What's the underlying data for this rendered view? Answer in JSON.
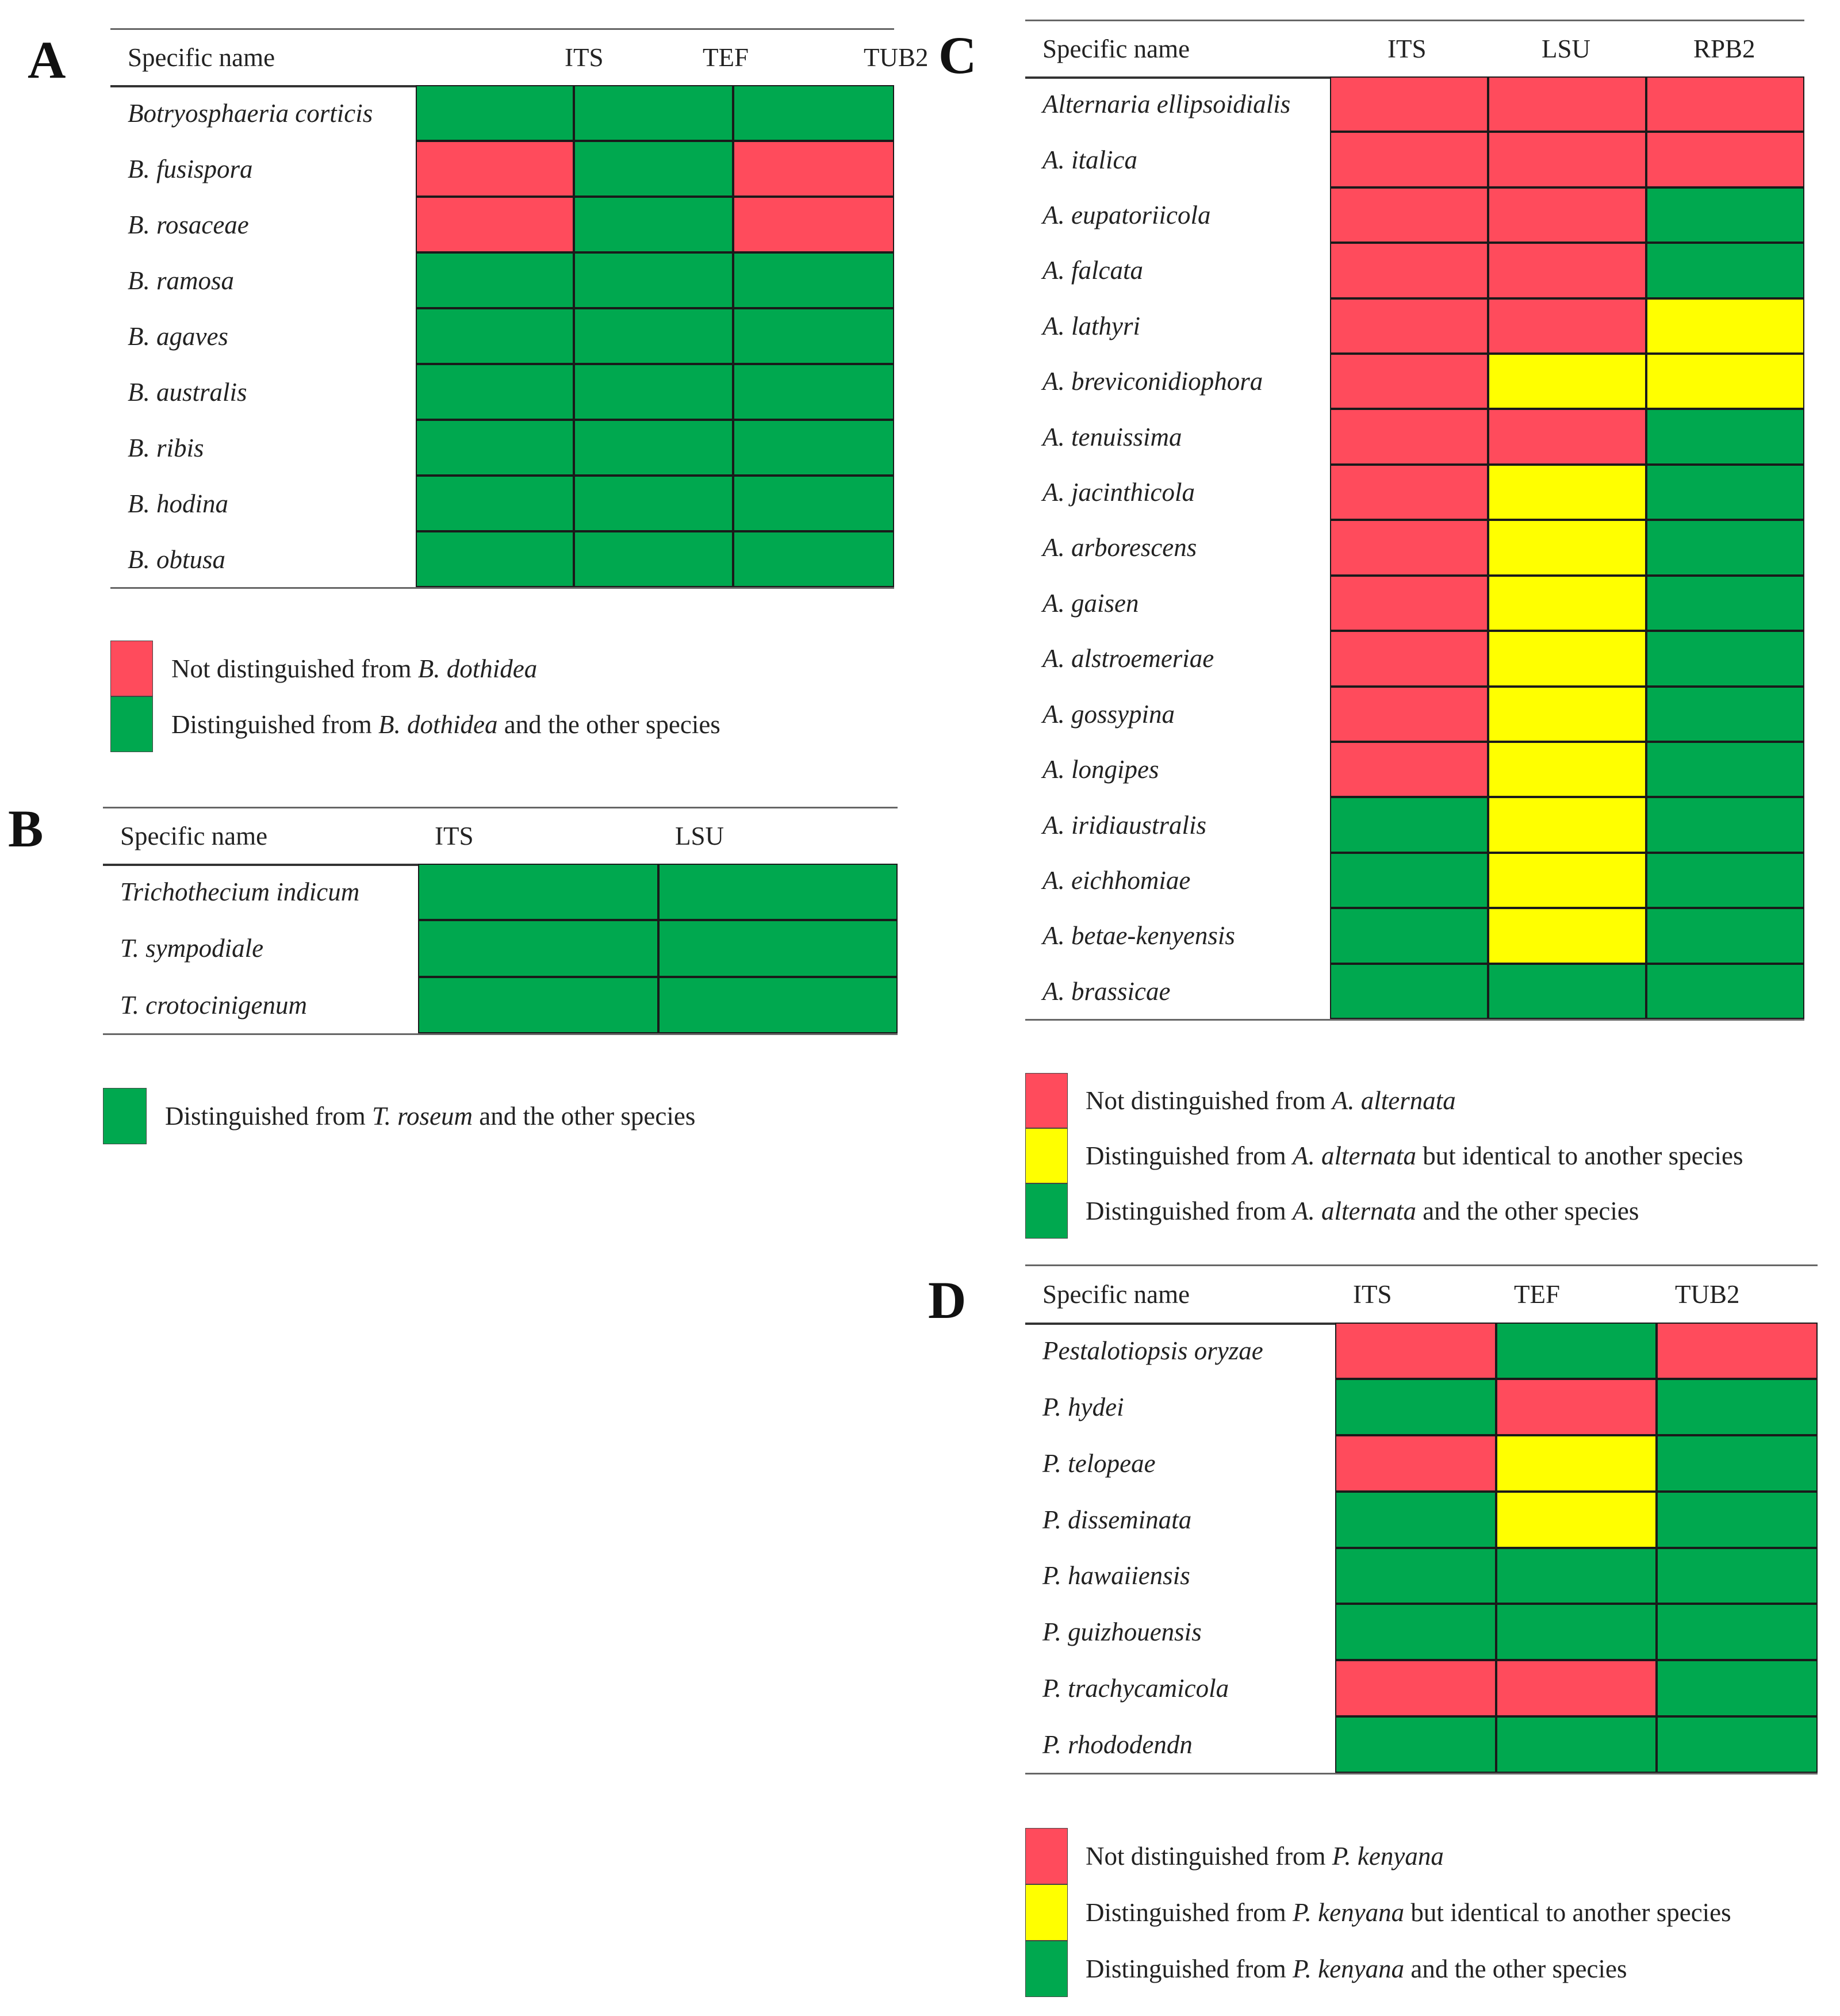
{
  "colors": {
    "red": "#FF4B5C",
    "green": "#00A84F",
    "yellow": "#FFFF00"
  },
  "panels": [
    {
      "label": "A",
      "headers": [
        "Specific name",
        "ITS",
        "TEF",
        "TUB2"
      ],
      "rows": [
        {
          "name": "Botryosphaeria corticis",
          "cells": [
            "green",
            "green",
            "green"
          ]
        },
        {
          "name": "B. fusispora",
          "cells": [
            "red",
            "green",
            "red"
          ]
        },
        {
          "name": "B. rosaceae",
          "cells": [
            "red",
            "green",
            "red"
          ]
        },
        {
          "name": "B. ramosa",
          "cells": [
            "green",
            "green",
            "green"
          ]
        },
        {
          "name": "B. agaves",
          "cells": [
            "green",
            "green",
            "green"
          ]
        },
        {
          "name": "B. australis",
          "cells": [
            "green",
            "green",
            "green"
          ]
        },
        {
          "name": "B. ribis",
          "cells": [
            "green",
            "green",
            "green"
          ]
        },
        {
          "name": "B. hodina",
          "cells": [
            "green",
            "green",
            "green"
          ]
        },
        {
          "name": "B. obtusa",
          "cells": [
            "green",
            "green",
            "green"
          ]
        }
      ],
      "legend": [
        {
          "color": "red",
          "parts": [
            {
              "t": "Not distinguished from ",
              "i": false
            },
            {
              "t": "B. dothidea",
              "i": true
            }
          ]
        },
        {
          "color": "green",
          "parts": [
            {
              "t": "Distinguished from ",
              "i": false
            },
            {
              "t": "B. dothidea",
              "i": true
            },
            {
              "t": " and the other species",
              "i": false
            }
          ]
        }
      ]
    },
    {
      "label": "B",
      "headers": [
        "Specific name",
        "ITS",
        "LSU"
      ],
      "rows": [
        {
          "name": "Trichothecium indicum",
          "cells": [
            "green",
            "green"
          ]
        },
        {
          "name": "T. sympodiale",
          "cells": [
            "green",
            "green"
          ]
        },
        {
          "name": "T. crotocinigenum",
          "cells": [
            "green",
            "green"
          ]
        }
      ],
      "legend": [
        {
          "color": "green",
          "parts": [
            {
              "t": "Distinguished from ",
              "i": false
            },
            {
              "t": "T. roseum",
              "i": true
            },
            {
              "t": " and the other species",
              "i": false
            }
          ]
        }
      ]
    },
    {
      "label": "C",
      "headers": [
        "Specific name",
        "ITS",
        "LSU",
        "RPB2"
      ],
      "rows": [
        {
          "name": "Alternaria ellipsoidialis",
          "cells": [
            "red",
            "red",
            "red"
          ]
        },
        {
          "name": "A. italica",
          "cells": [
            "red",
            "red",
            "red"
          ]
        },
        {
          "name": "A. eupatoriicola",
          "cells": [
            "red",
            "red",
            "green"
          ]
        },
        {
          "name": "A. falcata",
          "cells": [
            "red",
            "red",
            "green"
          ]
        },
        {
          "name": "A. lathyri",
          "cells": [
            "red",
            "red",
            "yellow"
          ]
        },
        {
          "name": "A. breviconidiophora",
          "cells": [
            "red",
            "yellow",
            "yellow"
          ]
        },
        {
          "name": "A. tenuissima",
          "cells": [
            "red",
            "red",
            "green"
          ]
        },
        {
          "name": "A. jacinthicola",
          "cells": [
            "red",
            "yellow",
            "green"
          ]
        },
        {
          "name": "A. arborescens",
          "cells": [
            "red",
            "yellow",
            "green"
          ]
        },
        {
          "name": "A. gaisen",
          "cells": [
            "red",
            "yellow",
            "green"
          ]
        },
        {
          "name": "A. alstroemeriae",
          "cells": [
            "red",
            "yellow",
            "green"
          ]
        },
        {
          "name": "A. gossypina",
          "cells": [
            "red",
            "yellow",
            "green"
          ]
        },
        {
          "name": "A. longipes",
          "cells": [
            "red",
            "yellow",
            "green"
          ]
        },
        {
          "name": "A. iridiaustralis",
          "cells": [
            "green",
            "yellow",
            "green"
          ]
        },
        {
          "name": "A. eichhomiae",
          "cells": [
            "green",
            "yellow",
            "green"
          ]
        },
        {
          "name": "A. betae-kenyensis",
          "cells": [
            "green",
            "yellow",
            "green"
          ]
        },
        {
          "name": "A. brassicae",
          "cells": [
            "green",
            "green",
            "green"
          ]
        }
      ],
      "legend": [
        {
          "color": "red",
          "parts": [
            {
              "t": "Not distinguished from ",
              "i": false
            },
            {
              "t": "A. alternata",
              "i": true
            }
          ]
        },
        {
          "color": "yellow",
          "parts": [
            {
              "t": "Distinguished from ",
              "i": false
            },
            {
              "t": "A. alternata",
              "i": true
            },
            {
              "t": " but identical to another species",
              "i": false
            }
          ]
        },
        {
          "color": "green",
          "parts": [
            {
              "t": "Distinguished from ",
              "i": false
            },
            {
              "t": "A. alternata",
              "i": true
            },
            {
              "t": " and the other species",
              "i": false
            }
          ]
        }
      ]
    },
    {
      "label": "D",
      "headers": [
        "Specific name",
        "ITS",
        "TEF",
        "TUB2"
      ],
      "rows": [
        {
          "name": "Pestalotiopsis oryzae",
          "cells": [
            "red",
            "green",
            "red"
          ]
        },
        {
          "name": "P. hydei",
          "cells": [
            "green",
            "red",
            "green"
          ]
        },
        {
          "name": "P. telopeae",
          "cells": [
            "red",
            "yellow",
            "green"
          ]
        },
        {
          "name": "P. disseminata",
          "cells": [
            "green",
            "yellow",
            "green"
          ]
        },
        {
          "name": "P. hawaiiensis",
          "cells": [
            "green",
            "green",
            "green"
          ]
        },
        {
          "name": "P. guizhouensis",
          "cells": [
            "green",
            "green",
            "green"
          ]
        },
        {
          "name": "P. trachycamicola",
          "cells": [
            "red",
            "red",
            "green"
          ]
        },
        {
          "name": "P. rhododendn",
          "cells": [
            "green",
            "green",
            "green"
          ]
        }
      ],
      "legend": [
        {
          "color": "red",
          "parts": [
            {
              "t": "Not distinguished from ",
              "i": false
            },
            {
              "t": "P. kenyana",
              "i": true
            }
          ]
        },
        {
          "color": "yellow",
          "parts": [
            {
              "t": "Distinguished from ",
              "i": false
            },
            {
              "t": "P. kenyana",
              "i": true
            },
            {
              "t": " but identical to another species",
              "i": false
            }
          ]
        },
        {
          "color": "green",
          "parts": [
            {
              "t": "Distinguished from ",
              "i": false
            },
            {
              "t": "P. kenyana",
              "i": true
            },
            {
              "t": " and the other species",
              "i": false
            }
          ]
        }
      ]
    }
  ]
}
